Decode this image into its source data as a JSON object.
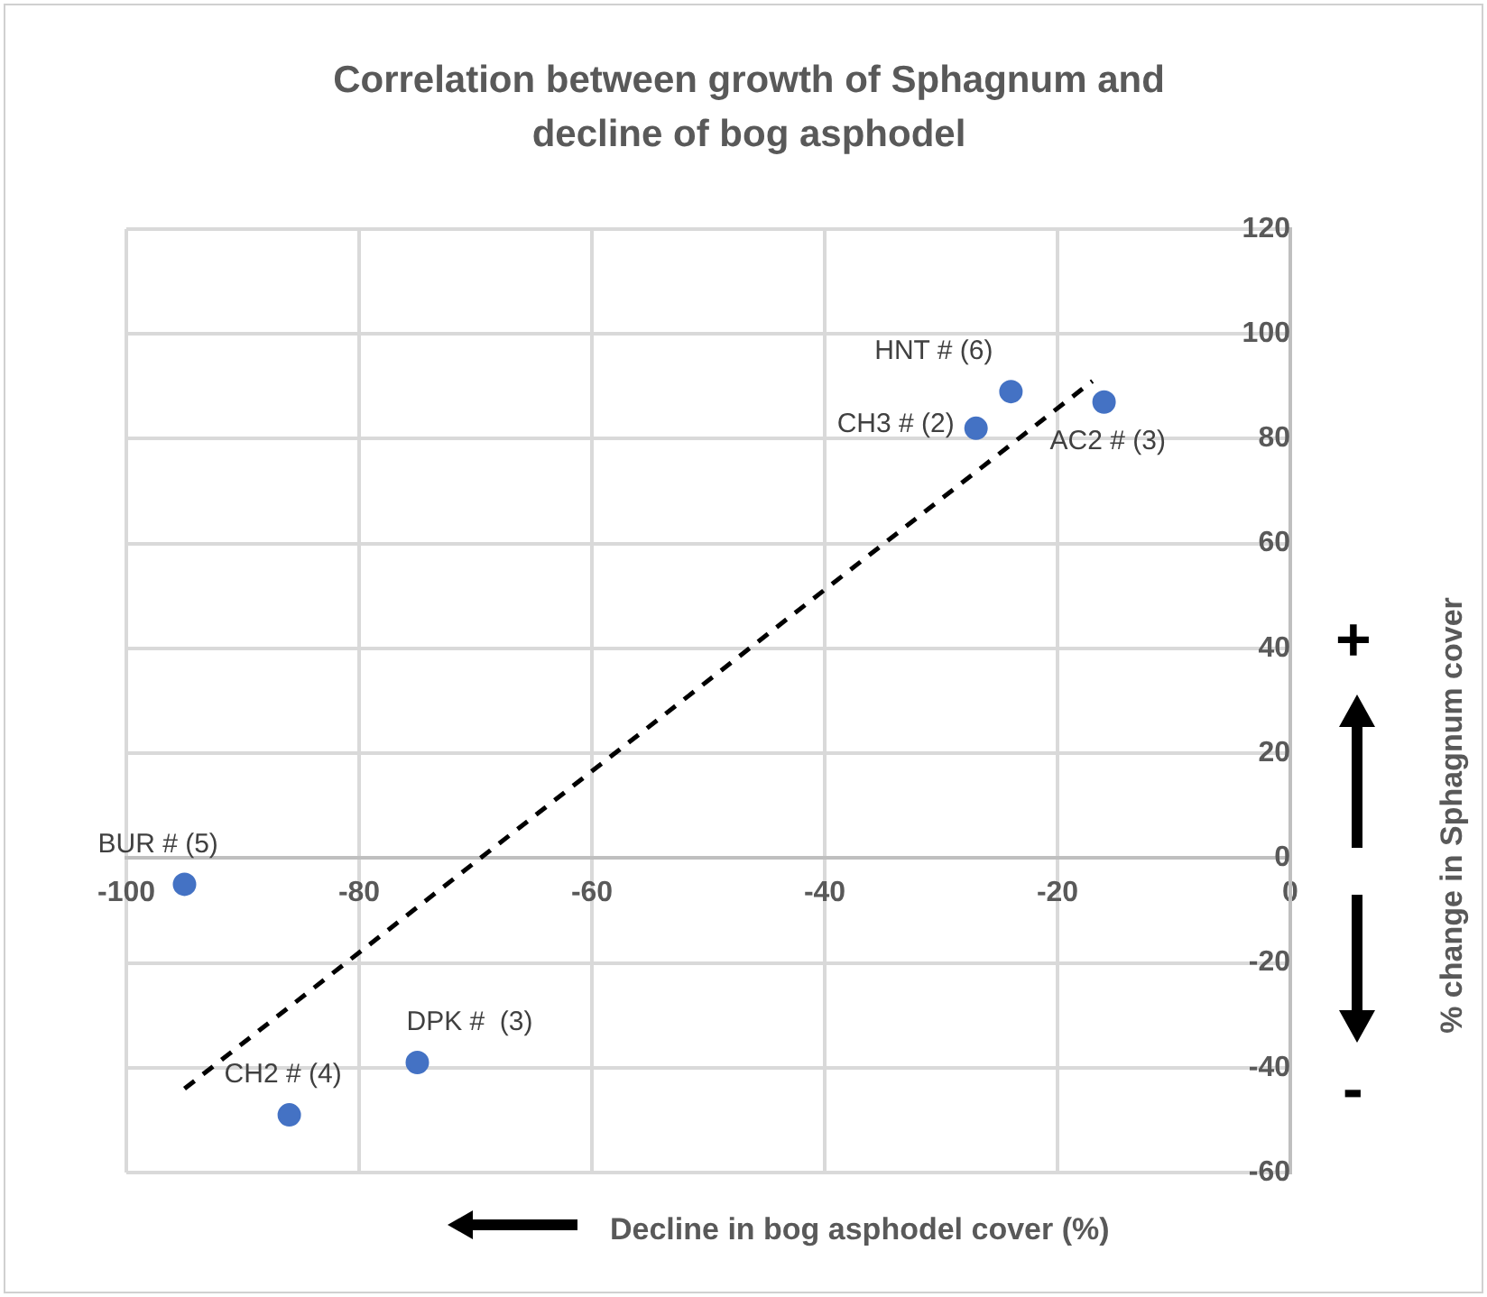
{
  "chart_data": {
    "type": "scatter",
    "title": "Correlation between growth of Sphagnum and decline of bog asphodel",
    "xlabel": "Decline in bog asphodel cover (%)",
    "ylabel": "% change in Sphagnum cover",
    "annotations": [
      "+",
      "-",
      {
        "text": "HNT # (6)",
        "x": -24,
        "y": 89
      },
      {
        "text": "CH3 # (2)",
        "x": -27,
        "y": 82
      },
      {
        "text": "AC2 # (3)",
        "x": -16,
        "y": 87
      },
      {
        "text": "BUR # (5)",
        "x": -95,
        "y": -5
      },
      {
        "text": "DPK #  (3)",
        "x": -75,
        "y": -39
      },
      {
        "text": "CH2 # (4)",
        "x": -86,
        "y": -49
      }
    ],
    "series": [
      {
        "color": "#4472c4",
        "marker": "circle",
        "x": [
          -24,
          -27,
          -16,
          -95,
          -75,
          -86
        ],
        "values": [
          89,
          82,
          87,
          -5,
          -39,
          -49
        ]
      },
      {
        "type": "line",
        "color": "#000000",
        "line_style": "dashed",
        "x": [
          -95,
          -17
        ],
        "values": [
          -44,
          91
        ]
      }
    ],
    "xlim": [
      -100,
      0
    ],
    "ylim": [
      -60,
      120
    ],
    "xticks": [
      -100,
      -80,
      -60,
      -40,
      -20,
      0
    ],
    "yticks": [
      -60,
      -40,
      -20,
      0,
      20,
      40,
      60,
      80,
      100,
      120
    ],
    "grid": true,
    "legend": false
  }
}
